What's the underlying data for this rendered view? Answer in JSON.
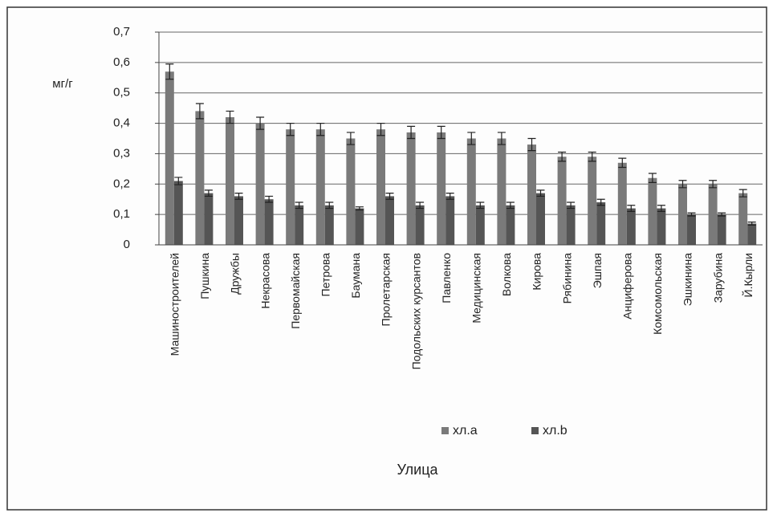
{
  "chart_data": {
    "type": "bar",
    "y_label": "мг/г",
    "x_label": "Улица",
    "categories": [
      "Машиностроителей",
      "Пушкина",
      "Дружбы",
      "Некрасова",
      "Первомайская",
      "Петрова",
      "Баумана",
      "Пролетарская",
      "Подольских курсантов",
      "Павленко",
      "Медицинская",
      "Волкова",
      "Кирова",
      "Рябинина",
      "Эшпая",
      "Анциферова",
      "Комсомольская",
      "Эшкинина",
      "Зарубина",
      "Й.Кырли"
    ],
    "series": [
      {
        "name": "хл.а",
        "color": "#7a7a7a",
        "values": [
          0.57,
          0.44,
          0.42,
          0.4,
          0.38,
          0.38,
          0.35,
          0.38,
          0.37,
          0.37,
          0.35,
          0.35,
          0.33,
          0.29,
          0.29,
          0.27,
          0.22,
          0.2,
          0.2,
          0.17
        ],
        "errors": [
          0.025,
          0.025,
          0.02,
          0.02,
          0.02,
          0.02,
          0.02,
          0.02,
          0.02,
          0.02,
          0.02,
          0.02,
          0.02,
          0.015,
          0.015,
          0.015,
          0.015,
          0.012,
          0.012,
          0.012
        ]
      },
      {
        "name": "хл.b",
        "color": "#555555",
        "values": [
          0.21,
          0.17,
          0.16,
          0.15,
          0.13,
          0.13,
          0.12,
          0.16,
          0.13,
          0.16,
          0.13,
          0.13,
          0.17,
          0.13,
          0.14,
          0.12,
          0.12,
          0.1,
          0.1,
          0.07
        ],
        "errors": [
          0.012,
          0.01,
          0.01,
          0.01,
          0.01,
          0.01,
          0.005,
          0.01,
          0.01,
          0.01,
          0.01,
          0.01,
          0.01,
          0.01,
          0.01,
          0.01,
          0.01,
          0.005,
          0.005,
          0.005
        ]
      }
    ],
    "ylim": [
      0,
      0.7
    ],
    "yticks": [
      0,
      {
        "value": 0.1,
        "label": "0,1"
      },
      {
        "value": 0.2,
        "label": "0,2"
      },
      {
        "value": 0.3,
        "label": "0,3"
      },
      {
        "value": 0.4,
        "label": "0,4"
      },
      {
        "value": 0.5,
        "label": "0,5"
      },
      {
        "value": 0.6,
        "label": "0,6"
      },
      {
        "value": 0.7,
        "label": "0,7"
      }
    ],
    "grid": true,
    "legend": "bottom"
  }
}
